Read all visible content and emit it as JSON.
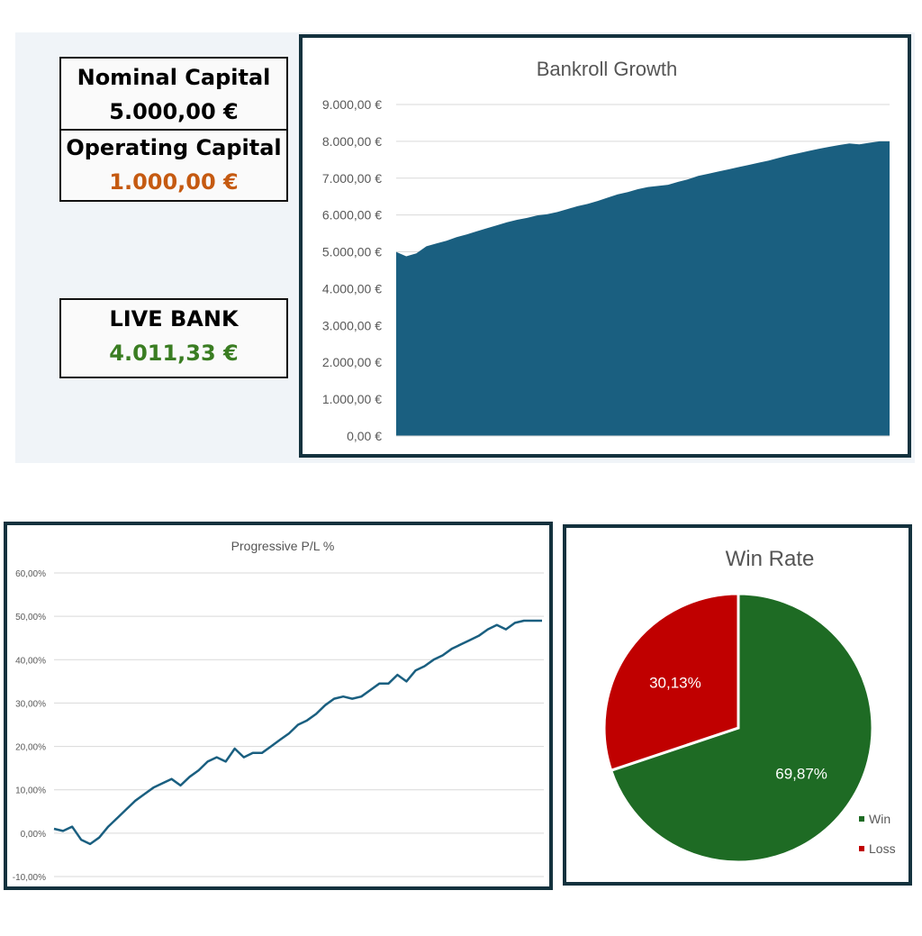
{
  "stats": {
    "nominal_label": "Nominal Capital",
    "nominal_value": "5.000,00 €",
    "operating_label": "Operating Capital",
    "operating_value": "1.000,00 €",
    "live_label": "LIVE BANK",
    "live_value": "4.011,33 €"
  },
  "colors": {
    "operating_value": "#c55a11",
    "live_value": "#3a7d22",
    "bankroll_fill": "#1a5f80",
    "pl_line": "#1a5f80",
    "win": "#1e6b24",
    "loss": "#c00000",
    "frame": "#14323e"
  },
  "chart_data": [
    {
      "type": "area",
      "title": "Bankroll Growth",
      "y_ticks": [
        "9.000,00 €",
        "8.000,00 €",
        "7.000,00 €",
        "6.000,00 €",
        "5.000,00 €",
        "4.000,00 €",
        "3.000,00 €",
        "2.000,00 €",
        "1.000,00 €",
        "0,00 €"
      ],
      "ylim": [
        0,
        9000
      ],
      "grid": true,
      "series": [
        {
          "values": [
            5000,
            4880,
            4960,
            5150,
            5230,
            5300,
            5400,
            5470,
            5560,
            5640,
            5720,
            5800,
            5870,
            5920,
            5990,
            6020,
            6080,
            6160,
            6240,
            6300,
            6380,
            6470,
            6560,
            6620,
            6700,
            6760,
            6790,
            6820,
            6900,
            6970,
            7060,
            7120,
            7180,
            7240,
            7300,
            7360,
            7420,
            7480,
            7550,
            7620,
            7680,
            7740,
            7800,
            7850,
            7900,
            7940,
            7920,
            7960,
            8000,
            8000
          ]
        }
      ]
    },
    {
      "type": "line",
      "title": "Progressive P/L %",
      "y_ticks": [
        "60,00%",
        "50,00%",
        "40,00%",
        "30,00%",
        "20,00%",
        "10,00%",
        "0,00%",
        "-10,00%"
      ],
      "ylim": [
        -10,
        60
      ],
      "grid": true,
      "series": [
        {
          "values": [
            1.0,
            0.5,
            1.5,
            -1.5,
            -2.5,
            -1.0,
            1.5,
            3.5,
            5.5,
            7.5,
            9.0,
            10.5,
            11.5,
            12.5,
            11.0,
            13.0,
            14.5,
            16.5,
            17.5,
            16.5,
            19.5,
            17.5,
            18.5,
            18.5,
            20.0,
            21.5,
            23.0,
            25.0,
            26.0,
            27.5,
            29.5,
            31.0,
            31.5,
            31.0,
            31.5,
            33.0,
            34.5,
            34.5,
            36.5,
            35.0,
            37.5,
            38.5,
            40.0,
            41.0,
            42.5,
            43.5,
            44.5,
            45.5,
            47.0,
            48.0,
            47.0,
            48.5,
            49.0,
            49.0,
            49.0
          ]
        }
      ]
    },
    {
      "type": "pie",
      "title": "Win Rate",
      "legend": "right",
      "slices": [
        {
          "name": "Win",
          "value": 69.87,
          "label": "69,87%"
        },
        {
          "name": "Loss",
          "value": 30.13,
          "label": "30,13%"
        }
      ]
    }
  ]
}
